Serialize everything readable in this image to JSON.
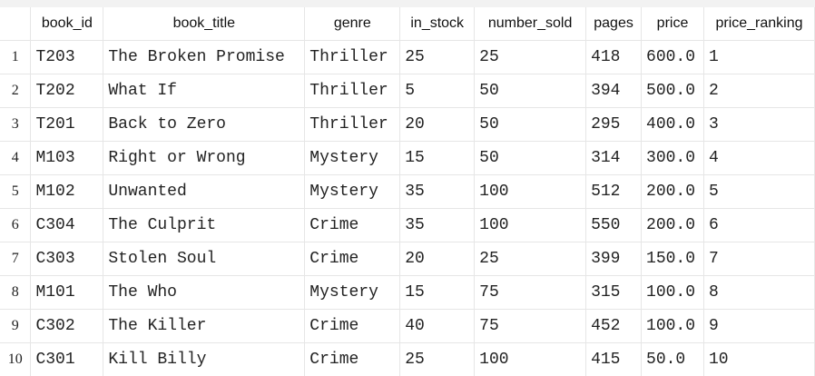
{
  "table": {
    "columns": [
      "",
      "book_id",
      "book_title",
      "genre",
      "in_stock",
      "number_sold",
      "pages",
      "price",
      "price_ranking"
    ],
    "rows": [
      [
        "1",
        "T203",
        "The Broken Promise",
        "Thriller",
        "25",
        "25",
        "418",
        "600.0",
        "1"
      ],
      [
        "2",
        "T202",
        "What If",
        "Thriller",
        "5",
        "50",
        "394",
        "500.0",
        "2"
      ],
      [
        "3",
        "T201",
        "Back to Zero",
        "Thriller",
        "20",
        "50",
        "295",
        "400.0",
        "3"
      ],
      [
        "4",
        "M103",
        "Right or Wrong",
        "Mystery",
        "15",
        "50",
        "314",
        "300.0",
        "4"
      ],
      [
        "5",
        "M102",
        "Unwanted",
        "Mystery",
        "35",
        "100",
        "512",
        "200.0",
        "5"
      ],
      [
        "6",
        "C304",
        "The Culprit",
        "Crime",
        "35",
        "100",
        "550",
        "200.0",
        "6"
      ],
      [
        "7",
        "C303",
        "Stolen Soul",
        "Crime",
        "20",
        "25",
        "399",
        "150.0",
        "7"
      ],
      [
        "8",
        "M101",
        "The Who",
        "Mystery",
        "15",
        "75",
        "315",
        "100.0",
        "8"
      ],
      [
        "9",
        "C302",
        "The Killer",
        "Crime",
        "40",
        "75",
        "452",
        "100.0",
        "9"
      ],
      [
        "10",
        "C301",
        "Kill Billy",
        "Crime",
        "25",
        "100",
        "415",
        "50.0",
        "10"
      ]
    ]
  }
}
